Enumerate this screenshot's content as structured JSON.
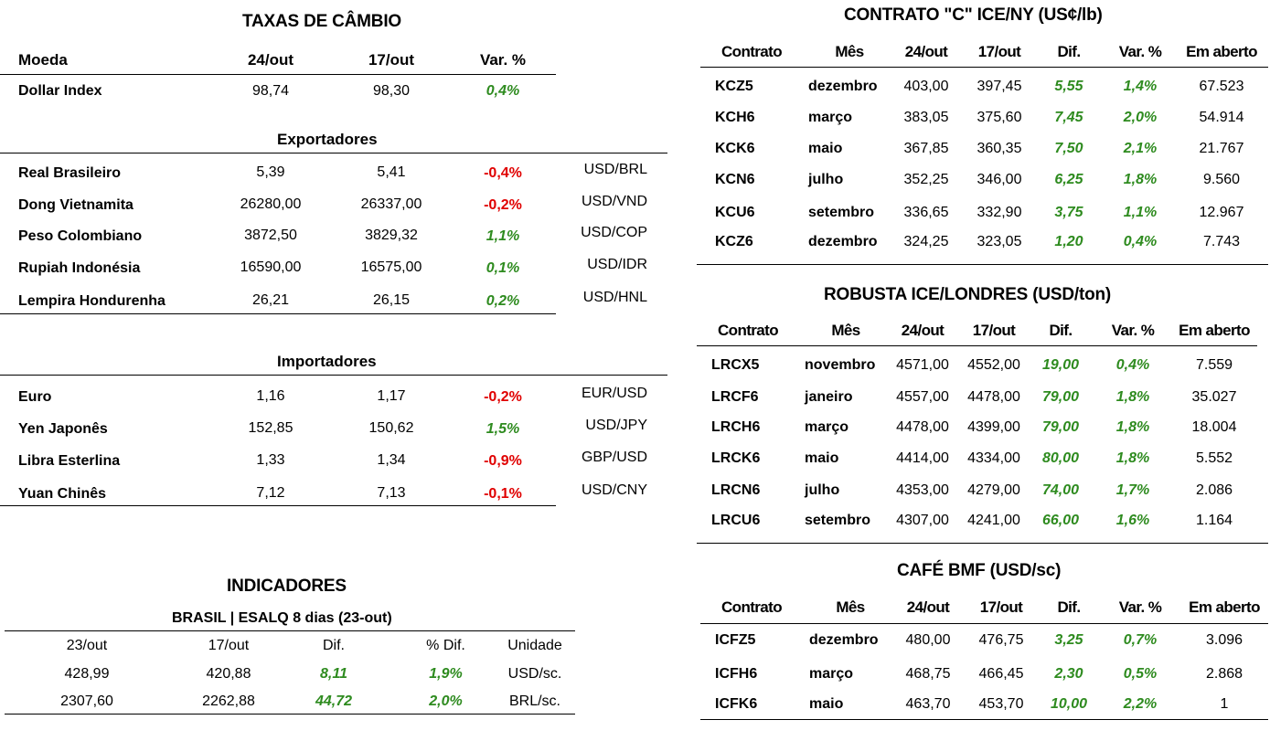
{
  "fx": {
    "title": "TAXAS DE CÂMBIO",
    "headers": [
      "Moeda",
      "24/out",
      "17/out",
      "Var. %"
    ],
    "dollar_index": {
      "name": "Dollar Index",
      "v1": "98,74",
      "v2": "98,30",
      "var": "0,4%"
    },
    "exporters_title": "Exportadores",
    "exporters": [
      {
        "name": "Real Brasileiro",
        "v1": "5,39",
        "v2": "5,41",
        "var": "-0,4%",
        "pair": "USD/BRL"
      },
      {
        "name": "Dong Vietnamita",
        "v1": "26280,00",
        "v2": "26337,00",
        "var": "-0,2%",
        "pair": "USD/VND"
      },
      {
        "name": "Peso Colombiano",
        "v1": "3872,50",
        "v2": "3829,32",
        "var": "1,1%",
        "pair": "USD/COP"
      },
      {
        "name": "Rupiah Indonésia",
        "v1": "16590,00",
        "v2": "16575,00",
        "var": "0,1%",
        "pair": "USD/IDR"
      },
      {
        "name": "Lempira Hondurenha",
        "v1": "26,21",
        "v2": "26,15",
        "var": "0,2%",
        "pair": "USD/HNL"
      }
    ],
    "importers_title": "Importadores",
    "importers": [
      {
        "name": "Euro",
        "v1": "1,16",
        "v2": "1,17",
        "var": "-0,2%",
        "pair": "EUR/USD"
      },
      {
        "name": "Yen Japonês",
        "v1": "152,85",
        "v2": "150,62",
        "var": "1,5%",
        "pair": "USD/JPY"
      },
      {
        "name": "Libra Esterlina",
        "v1": "1,33",
        "v2": "1,34",
        "var": "-0,9%",
        "pair": "GBP/USD"
      },
      {
        "name": "Yuan Chinês",
        "v1": "7,12",
        "v2": "7,13",
        "var": "-0,1%",
        "pair": "USD/CNY"
      }
    ]
  },
  "indicators": {
    "title": "INDICADORES",
    "subtitle": "BRASIL | ESALQ 8 dias (23-out)",
    "headers": [
      "23/out",
      "17/out",
      "Dif.",
      "% Dif.",
      "Unidade"
    ],
    "rows": [
      {
        "v1": "428,99",
        "v2": "420,88",
        "dif": "8,11",
        "pct": "1,9%",
        "unit": "USD/sc."
      },
      {
        "v1": "2307,60",
        "v2": "2262,88",
        "dif": "44,72",
        "pct": "2,0%",
        "unit": "BRL/sc."
      }
    ]
  },
  "ice_ny": {
    "title": "CONTRATO \"C\" ICE/NY (US¢/lb)",
    "headers": [
      "Contrato",
      "Mês",
      "24/out",
      "17/out",
      "Dif.",
      "Var. %",
      "Em aberto"
    ],
    "rows": [
      {
        "c": "KCZ5",
        "m": "dezembro",
        "v1": "403,00",
        "v2": "397,45",
        "d": "5,55",
        "p": "1,4%",
        "oi": "67.523"
      },
      {
        "c": "KCH6",
        "m": "março",
        "v1": "383,05",
        "v2": "375,60",
        "d": "7,45",
        "p": "2,0%",
        "oi": "54.914"
      },
      {
        "c": "KCK6",
        "m": "maio",
        "v1": "367,85",
        "v2": "360,35",
        "d": "7,50",
        "p": "2,1%",
        "oi": "21.767"
      },
      {
        "c": "KCN6",
        "m": "julho",
        "v1": "352,25",
        "v2": "346,00",
        "d": "6,25",
        "p": "1,8%",
        "oi": "9.560"
      },
      {
        "c": "KCU6",
        "m": "setembro",
        "v1": "336,65",
        "v2": "332,90",
        "d": "3,75",
        "p": "1,1%",
        "oi": "12.967"
      },
      {
        "c": "KCZ6",
        "m": "dezembro",
        "v1": "324,25",
        "v2": "323,05",
        "d": "1,20",
        "p": "0,4%",
        "oi": "7.743"
      }
    ]
  },
  "robusta": {
    "title": "ROBUSTA ICE/LONDRES (USD/ton)",
    "headers": [
      "Contrato",
      "Mês",
      "24/out",
      "17/out",
      "Dif.",
      "Var. %",
      "Em aberto"
    ],
    "rows": [
      {
        "c": "LRCX5",
        "m": "novembro",
        "v1": "4571,00",
        "v2": "4552,00",
        "d": "19,00",
        "p": "0,4%",
        "oi": "7.559"
      },
      {
        "c": "LRCF6",
        "m": "janeiro",
        "v1": "4557,00",
        "v2": "4478,00",
        "d": "79,00",
        "p": "1,8%",
        "oi": "35.027"
      },
      {
        "c": "LRCH6",
        "m": "março",
        "v1": "4478,00",
        "v2": "4399,00",
        "d": "79,00",
        "p": "1,8%",
        "oi": "18.004"
      },
      {
        "c": "LRCK6",
        "m": "maio",
        "v1": "4414,00",
        "v2": "4334,00",
        "d": "80,00",
        "p": "1,8%",
        "oi": "5.552"
      },
      {
        "c": "LRCN6",
        "m": "julho",
        "v1": "4353,00",
        "v2": "4279,00",
        "d": "74,00",
        "p": "1,7%",
        "oi": "2.086"
      },
      {
        "c": "LRCU6",
        "m": "setembro",
        "v1": "4307,00",
        "v2": "4241,00",
        "d": "66,00",
        "p": "1,6%",
        "oi": "1.164"
      }
    ]
  },
  "bmf": {
    "title": "CAFÉ BMF (USD/sc)",
    "headers": [
      "Contrato",
      "Mês",
      "24/out",
      "17/out",
      "Dif.",
      "Var. %",
      "Em aberto"
    ],
    "rows": [
      {
        "c": "ICFZ5",
        "m": "dezembro",
        "v1": "480,00",
        "v2": "476,75",
        "d": "3,25",
        "p": "0,7%",
        "oi": "3.096"
      },
      {
        "c": "ICFH6",
        "m": "março",
        "v1": "468,75",
        "v2": "466,45",
        "d": "2,30",
        "p": "0,5%",
        "oi": "2.868"
      },
      {
        "c": "ICFK6",
        "m": "maio",
        "v1": "463,70",
        "v2": "453,70",
        "d": "10,00",
        "p": "2,2%",
        "oi": "1"
      }
    ]
  }
}
